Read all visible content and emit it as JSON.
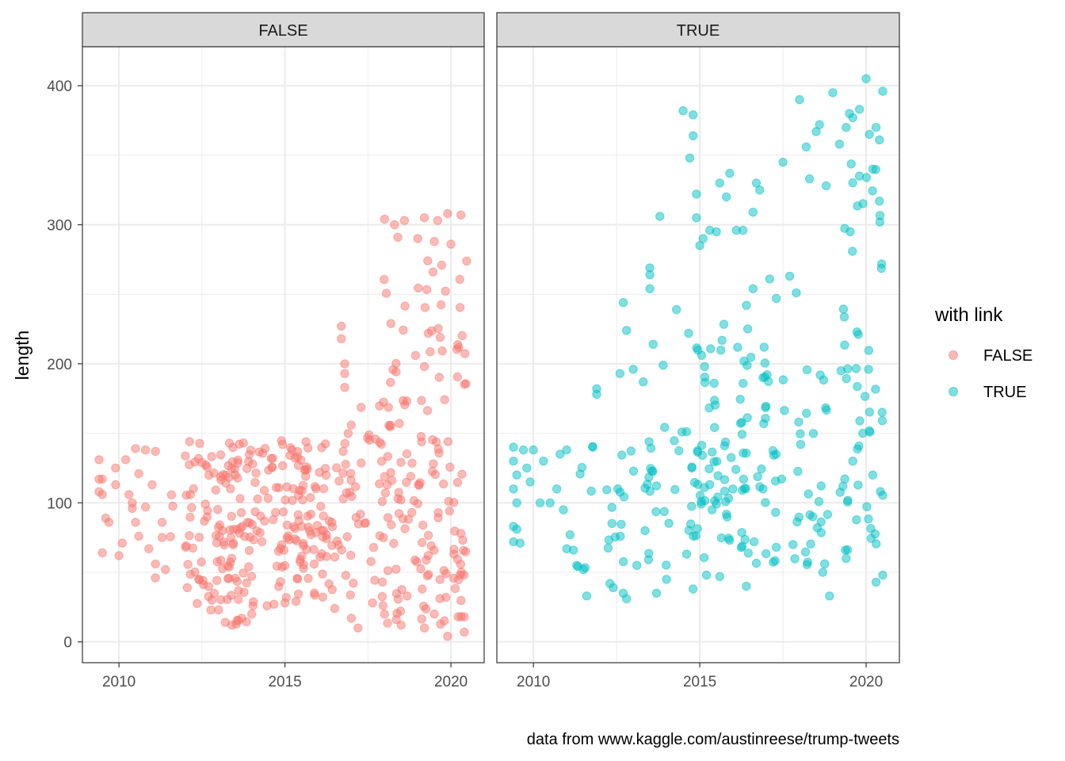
{
  "chart_data": {
    "type": "scatter",
    "facet_by": "with link",
    "panels": [
      "FALSE",
      "TRUE"
    ],
    "xlabel": "",
    "ylabel": "length",
    "xlim": [
      2008.9,
      2021.0
    ],
    "ylim": [
      -15,
      428
    ],
    "x_ticks": [
      2010,
      2015,
      2020
    ],
    "y_ticks": [
      0,
      100,
      200,
      300,
      400
    ],
    "grid": true,
    "legend": {
      "title": "with link",
      "position": "right",
      "entries": [
        {
          "label": "FALSE",
          "color": "#F8766D"
        },
        {
          "label": "TRUE",
          "color": "#00BFC4"
        }
      ]
    },
    "caption": "data from www.kaggle.com/austinreese/trump-tweets",
    "point_alpha": 0.5,
    "series": [
      {
        "name": "FALSE",
        "color": "#F8766D",
        "points": [
          [
            2009.4,
            131
          ],
          [
            2009.4,
            117
          ],
          [
            2009.4,
            108
          ],
          [
            2009.5,
            106
          ],
          [
            2009.5,
            117
          ],
          [
            2009.5,
            64
          ],
          [
            2009.6,
            89
          ],
          [
            2009.7,
            86
          ],
          [
            2009.9,
            125
          ],
          [
            2009.9,
            113
          ],
          [
            2010.0,
            62
          ],
          [
            2010.1,
            71
          ],
          [
            2010.2,
            131
          ],
          [
            2010.3,
            106
          ],
          [
            2010.4,
            100
          ],
          [
            2010.4,
            96
          ],
          [
            2010.5,
            86
          ],
          [
            2010.6,
            76
          ],
          [
            2010.6,
            121
          ],
          [
            2010.8,
            97
          ],
          [
            2010.9,
            67
          ],
          [
            2011.0,
            113
          ],
          [
            2011.1,
            56
          ],
          [
            2011.1,
            46
          ],
          [
            2011.3,
            86
          ],
          [
            2011.4,
            52
          ],
          [
            2011.3,
            75
          ],
          [
            2010.5,
            139
          ],
          [
            2010.8,
            138
          ],
          [
            2011.1,
            137
          ],
          [
            2013.2,
            14
          ],
          [
            2013.4,
            12
          ],
          [
            2013.7,
            17
          ],
          [
            2013.0,
            23
          ],
          [
            2014.0,
            20
          ],
          [
            2016.7,
            227
          ],
          [
            2016.7,
            218
          ],
          [
            2016.8,
            200
          ],
          [
            2016.8,
            193
          ],
          [
            2016.8,
            183
          ],
          [
            2017.2,
            10
          ],
          [
            2017.0,
            17
          ],
          [
            2018.5,
            12
          ],
          [
            2019.2,
            10
          ],
          [
            2019.9,
            4
          ],
          [
            2020.4,
            7
          ],
          [
            2018.0,
            304
          ],
          [
            2018.3,
            300
          ],
          [
            2018.6,
            303
          ],
          [
            2019.2,
            305
          ],
          [
            2019.6,
            303
          ],
          [
            2019.9,
            308
          ],
          [
            2020.3,
            307
          ],
          [
            2018.4,
            291
          ],
          [
            2019.0,
            290
          ],
          [
            2019.5,
            288
          ],
          [
            2020.0,
            286
          ],
          [
            2012.8,
            30
          ],
          [
            2015.0,
            28
          ],
          [
            2016.5,
            24
          ],
          [
            2018.0,
            20
          ],
          [
            2019.5,
            20
          ],
          [
            2020.4,
            18
          ]
        ]
      },
      {
        "name": "TRUE",
        "color": "#00BFC4",
        "points": [
          [
            2009.4,
            140
          ],
          [
            2009.4,
            130
          ],
          [
            2009.5,
            120
          ],
          [
            2009.4,
            110
          ],
          [
            2009.5,
            100
          ],
          [
            2009.4,
            83
          ],
          [
            2009.5,
            81
          ],
          [
            2009.4,
            72
          ],
          [
            2009.6,
            71
          ],
          [
            2009.7,
            138
          ],
          [
            2009.8,
            125
          ],
          [
            2009.9,
            115
          ],
          [
            2010.0,
            138
          ],
          [
            2010.2,
            100
          ],
          [
            2010.3,
            130
          ],
          [
            2010.5,
            100
          ],
          [
            2010.7,
            110
          ],
          [
            2010.8,
            135
          ],
          [
            2010.9,
            95
          ],
          [
            2011.1,
            77
          ],
          [
            2011.0,
            67
          ],
          [
            2011.2,
            66
          ],
          [
            2011.0,
            138
          ],
          [
            2011.3,
            55
          ],
          [
            2011.5,
            52
          ],
          [
            2011.6,
            33
          ],
          [
            2011.9,
            182
          ],
          [
            2011.9,
            178
          ],
          [
            2012.3,
            42
          ],
          [
            2012.4,
            39
          ],
          [
            2012.6,
            193
          ],
          [
            2012.7,
            244
          ],
          [
            2012.8,
            224
          ],
          [
            2012.7,
            35
          ],
          [
            2012.8,
            31
          ],
          [
            2013.0,
            196
          ],
          [
            2013.3,
            187
          ],
          [
            2013.5,
            269
          ],
          [
            2013.5,
            264
          ],
          [
            2013.5,
            254
          ],
          [
            2013.6,
            214
          ],
          [
            2013.7,
            35
          ],
          [
            2013.8,
            306
          ],
          [
            2013.9,
            199
          ],
          [
            2014.0,
            45
          ],
          [
            2014.3,
            239
          ],
          [
            2014.5,
            382
          ],
          [
            2014.7,
            348
          ],
          [
            2014.8,
            379
          ],
          [
            2014.8,
            364
          ],
          [
            2014.9,
            322
          ],
          [
            2014.9,
            305
          ],
          [
            2014.8,
            38
          ],
          [
            2015.0,
            285
          ],
          [
            2015.1,
            290
          ],
          [
            2015.3,
            296
          ],
          [
            2015.5,
            295
          ],
          [
            2015.6,
            330
          ],
          [
            2015.8,
            320
          ],
          [
            2015.9,
            337
          ],
          [
            2016.1,
            296
          ],
          [
            2016.3,
            296
          ],
          [
            2016.6,
            254
          ],
          [
            2016.4,
            40
          ],
          [
            2016.6,
            309
          ],
          [
            2016.7,
            330
          ],
          [
            2016.8,
            325
          ],
          [
            2016.9,
            190
          ],
          [
            2017.1,
            261
          ],
          [
            2017.3,
            247
          ],
          [
            2017.5,
            345
          ],
          [
            2017.7,
            263
          ],
          [
            2017.9,
            251
          ],
          [
            2018.0,
            390
          ],
          [
            2018.2,
            356
          ],
          [
            2018.3,
            333
          ],
          [
            2018.5,
            367
          ],
          [
            2018.6,
            372
          ],
          [
            2018.8,
            328
          ],
          [
            2018.9,
            33
          ],
          [
            2019.0,
            395
          ],
          [
            2019.2,
            358
          ],
          [
            2019.4,
            370
          ],
          [
            2019.5,
            380
          ],
          [
            2019.6,
            377
          ],
          [
            2019.8,
            383
          ],
          [
            2019.8,
            335
          ],
          [
            2020.0,
            405
          ],
          [
            2020.1,
            365
          ],
          [
            2020.3,
            370
          ],
          [
            2020.4,
            361
          ],
          [
            2020.5,
            396
          ],
          [
            2020.5,
            48
          ],
          [
            2020.3,
            43
          ],
          [
            2020.2,
            340
          ],
          [
            2020.4,
            317
          ],
          [
            2019.6,
            130
          ],
          [
            2019.9,
            150
          ],
          [
            2020.2,
            120
          ],
          [
            2019.4,
            60
          ],
          [
            2018.7,
            50
          ],
          [
            2018.4,
            90
          ],
          [
            2017.8,
            70
          ],
          [
            2017.3,
            68
          ],
          [
            2016.9,
            110
          ],
          [
            2015.6,
            47
          ],
          [
            2015.2,
            48
          ]
        ]
      }
    ],
    "dense_regions": {
      "FALSE": [
        [
          2011.5,
          2017.3,
          45,
          140
        ],
        [
          2011.9,
          2017.1,
          30,
          145
        ],
        [
          2012.0,
          2016.6,
          22,
          147
        ],
        [
          2013.0,
          2014.0,
          12,
          146
        ],
        [
          2016.6,
          2018.0,
          25,
          170
        ],
        [
          2017.9,
          2020.5,
          15,
          283
        ],
        [
          2017.9,
          2020.5,
          10,
          150
        ]
      ],
      "TRUE": [
        [
          2011.3,
          2013.6,
          50,
          143
        ],
        [
          2013.4,
          2016.0,
          55,
          160
        ],
        [
          2014.6,
          2016.5,
          60,
          235
        ],
        [
          2016.2,
          2017.0,
          55,
          250
        ],
        [
          2016.9,
          2019.0,
          55,
          200
        ],
        [
          2019.2,
          2020.5,
          57,
          345
        ]
      ]
    }
  }
}
